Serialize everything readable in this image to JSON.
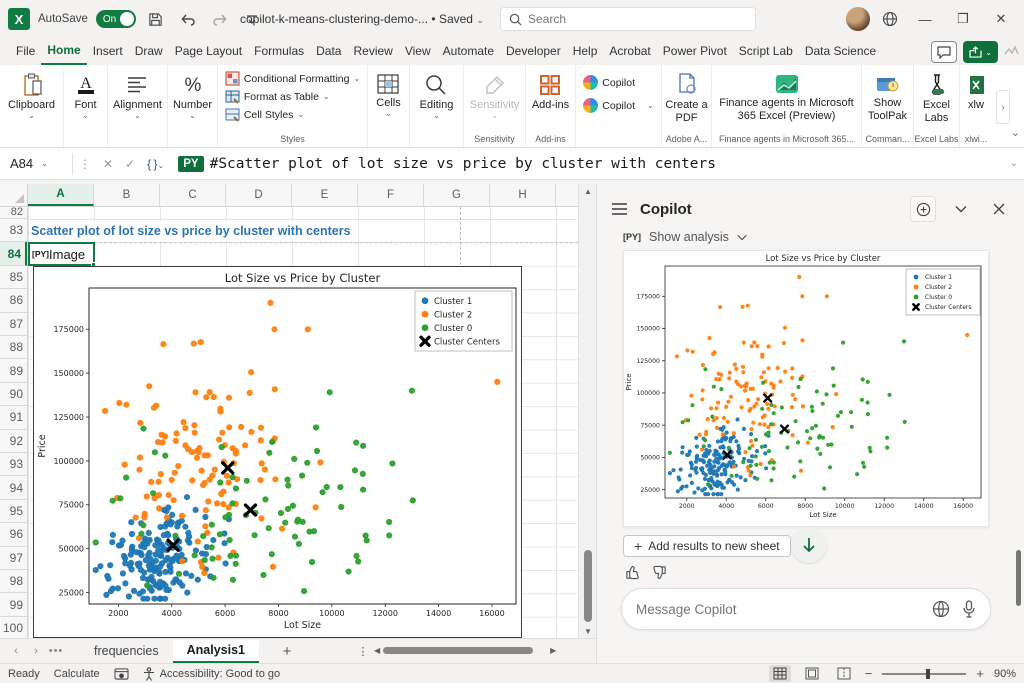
{
  "titlebar": {
    "app": "X",
    "autosave_label": "AutoSave",
    "autosave_state": "On",
    "doc_name": "copilot-k-means-clustering-demo-...",
    "saved_status": "Saved",
    "search_placeholder": "Search"
  },
  "tabs": {
    "items": [
      "File",
      "Home",
      "Insert",
      "Draw",
      "Page Layout",
      "Formulas",
      "Data",
      "Review",
      "View",
      "Automate",
      "Developer",
      "Help",
      "Acrobat",
      "Power Pivot",
      "Script Lab",
      "Data Science"
    ],
    "active": "Home"
  },
  "ribbon": {
    "clipboard": "Clipboard",
    "font": "Font",
    "alignment": "Alignment",
    "number": "Number",
    "conditional_formatting": "Conditional Formatting",
    "format_as_table": "Format as Table",
    "cell_styles": "Cell Styles",
    "styles_group": "Styles",
    "cells": "Cells",
    "editing": "Editing",
    "sensitivity": "Sensitivity",
    "sensitivity_group": "Sensitivity",
    "addins": "Add-ins",
    "addins_group": "Add-ins",
    "copilot1": "Copilot",
    "copilot2": "Copilot",
    "create_pdf": "Create a PDF",
    "adobe_group": "Adobe A...",
    "finance": "Finance agents in Microsoft 365 Excel (Preview)",
    "finance_group": "Finance agents in Microsoft 365...",
    "show_toolpak": "Show ToolPak",
    "command_group": "Comman...",
    "excel_labs": "Excel Labs",
    "excel_labs_group": "Excel Labs",
    "xlwings": "xlw",
    "xlwings_group": "xlwi..."
  },
  "formula_bar": {
    "cell_ref": "A84",
    "language_badge": "PY",
    "formula": "#Scatter plot of lot size vs price by cluster with centers"
  },
  "grid": {
    "columns": [
      "A",
      "B",
      "C",
      "D",
      "E",
      "F",
      "G",
      "H"
    ],
    "selected_column": "A",
    "rows": [
      82,
      83,
      84,
      85,
      86,
      87,
      88,
      89,
      90,
      91,
      92,
      93,
      94,
      95,
      96,
      97,
      98,
      99,
      100
    ],
    "selected_row": 84,
    "a83_text": "Scatter plot of lot size vs price by cluster with centers",
    "a84_badge": "[PY]",
    "a84_text": "Image"
  },
  "chart_data": {
    "type": "scatter",
    "title": "Lot Size vs Price by Cluster",
    "xlabel": "Lot Size",
    "ylabel": "Price",
    "xlim": [
      900,
      16900
    ],
    "ylim": [
      18500,
      198500
    ],
    "xticks": [
      2000,
      4000,
      6000,
      8000,
      10000,
      12000,
      14000,
      16000
    ],
    "yticks": [
      25000,
      50000,
      75000,
      100000,
      125000,
      150000,
      175000
    ],
    "grid": false,
    "legend_position": "upper right",
    "series": [
      {
        "name": "Cluster 1",
        "color": "#1f77b4",
        "count": 175,
        "center": [
          3600,
          48000
        ],
        "std": [
          950,
          12000
        ],
        "corr": 4,
        "extra_points": []
      },
      {
        "name": "Cluster 2",
        "color": "#ff7f0e",
        "count": 112,
        "center": [
          5300,
          103000
        ],
        "std": [
          1600,
          27000
        ],
        "corr": 3,
        "extra_points": [
          [
            16200,
            145000
          ],
          [
            7700,
            190000
          ],
          [
            7850,
            175000
          ],
          [
            9100,
            175000
          ],
          [
            2300,
            132000
          ]
        ]
      },
      {
        "name": "Cluster 0",
        "color": "#2ca02c",
        "count": 82,
        "center": [
          7600,
          76000
        ],
        "std": [
          2700,
          23000
        ],
        "corr": 2,
        "extra_points": [
          [
            13000,
            140000
          ]
        ]
      }
    ],
    "centers": {
      "name": "Cluster Centers",
      "color": "#000000",
      "points": [
        [
          4050,
          52000
        ],
        [
          6100,
          96000
        ],
        [
          6950,
          72000
        ]
      ]
    }
  },
  "copilot": {
    "title": "Copilot",
    "badge": "[PY]",
    "show_analysis": "Show analysis",
    "add_results": "Add results to new sheet",
    "message_placeholder": "Message Copilot"
  },
  "sheet_tabs": {
    "items": [
      "frequencies",
      "Analysis1"
    ],
    "active": "Analysis1"
  },
  "status_bar": {
    "ready": "Ready",
    "calculate": "Calculate",
    "accessibility": "Accessibility: Good to go",
    "zoom": "90%"
  },
  "colors": {
    "excel_green": "#107c41",
    "dark_green": "#0f703b",
    "cluster1": "#1f77b4",
    "cluster2": "#ff7f0e",
    "cluster0": "#2ca02c",
    "centers": "#000000",
    "heading_blue": "#2e74b5"
  }
}
